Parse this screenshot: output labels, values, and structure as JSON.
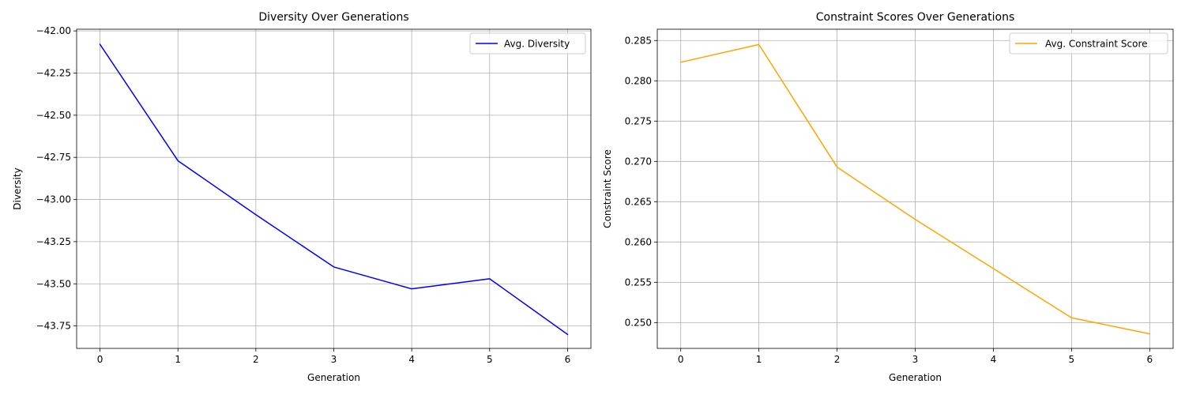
{
  "chart_data": [
    {
      "type": "line",
      "title": "Diversity Over Generations",
      "xlabel": "Generation",
      "ylabel": "Diversity",
      "x": [
        0,
        1,
        2,
        3,
        4,
        5,
        6
      ],
      "xlim": [
        -0.3,
        6.3
      ],
      "ylim": [
        -43.883,
        -41.99
      ],
      "xticks": [
        0,
        1,
        2,
        3,
        4,
        5,
        6
      ],
      "yticks": [
        -42.0,
        -42.25,
        -42.5,
        -42.75,
        -43.0,
        -43.25,
        -43.5,
        -43.75
      ],
      "ytick_labels": [
        "−42.00",
        "−42.25",
        "−42.50",
        "−42.75",
        "−43.00",
        "−43.25",
        "−43.50",
        "−43.75"
      ],
      "grid": true,
      "legend_position": "upper right",
      "series": [
        {
          "name": "Avg. Diversity",
          "color": "#0000ff",
          "values": [
            -42.08,
            -42.77,
            -43.09,
            -43.4,
            -43.53,
            -43.47,
            -43.8
          ]
        }
      ]
    },
    {
      "type": "line",
      "title": "Constraint Scores Over Generations",
      "xlabel": "Generation",
      "ylabel": "Constraint Score",
      "x": [
        0,
        1,
        2,
        3,
        4,
        5,
        6
      ],
      "xlim": [
        -0.3,
        6.3
      ],
      "ylim": [
        0.2468,
        0.2864
      ],
      "xticks": [
        0,
        1,
        2,
        3,
        4,
        5,
        6
      ],
      "yticks": [
        0.25,
        0.255,
        0.26,
        0.265,
        0.27,
        0.275,
        0.28,
        0.285
      ],
      "ytick_labels": [
        "0.250",
        "0.255",
        "0.260",
        "0.265",
        "0.270",
        "0.275",
        "0.280",
        "0.285"
      ],
      "grid": true,
      "legend_position": "upper right",
      "series": [
        {
          "name": "Avg. Constraint Score",
          "color": "#ffa500",
          "values": [
            0.2823,
            0.2845,
            0.2693,
            0.2628,
            0.2567,
            0.2506,
            0.2486
          ]
        }
      ]
    }
  ]
}
